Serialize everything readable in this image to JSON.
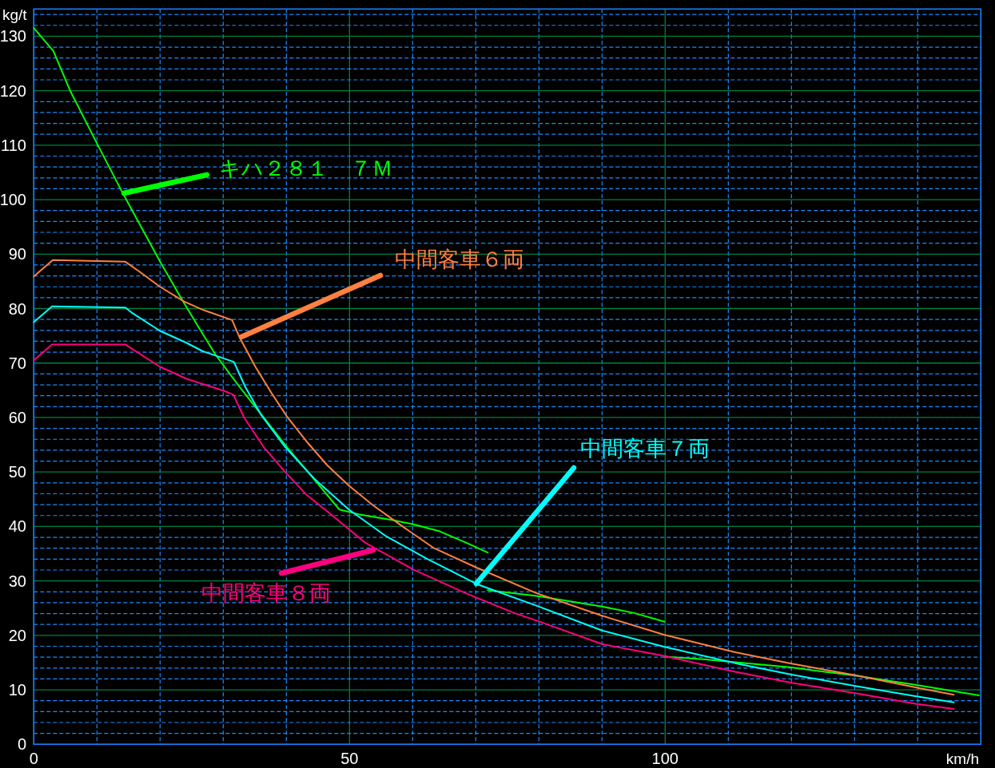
{
  "chart_data": {
    "type": "line",
    "xlabel": "km/h",
    "ylabel": "kg/t",
    "xlim": [
      0,
      150
    ],
    "ylim": [
      0,
      135
    ],
    "grid": true,
    "line_style": "solid",
    "xticks": [
      0,
      {
        "value": 10,
        "label": null
      },
      {
        "value": 20,
        "label": null
      },
      {
        "value": 30,
        "label": null
      },
      {
        "value": 40,
        "label": null
      },
      50,
      {
        "value": 60,
        "label": null
      },
      {
        "value": 70,
        "label": null
      },
      {
        "value": 80,
        "label": null
      },
      {
        "value": 90,
        "label": null
      },
      100,
      {
        "value": 110,
        "label": null
      },
      {
        "value": 120,
        "label": null
      },
      {
        "value": 130,
        "label": null
      },
      {
        "value": 140,
        "label": null
      }
    ],
    "yticks": [
      0,
      {
        "value": 2,
        "label": null
      },
      {
        "value": 4,
        "label": null
      },
      {
        "value": 6,
        "label": null
      },
      {
        "value": 8,
        "label": null
      },
      10,
      {
        "value": 12,
        "label": null
      },
      {
        "value": 14,
        "label": null
      },
      {
        "value": 16,
        "label": null
      },
      {
        "value": 18,
        "label": null
      },
      20,
      {
        "value": 22,
        "label": null
      },
      {
        "value": 24,
        "label": null
      },
      {
        "value": 26,
        "label": null
      },
      {
        "value": 28,
        "label": null
      },
      30,
      {
        "value": 32,
        "label": null
      },
      {
        "value": 34,
        "label": null
      },
      {
        "value": 36,
        "label": null
      },
      {
        "value": 38,
        "label": null
      },
      40,
      {
        "value": 42,
        "label": null
      },
      {
        "value": 44,
        "label": null
      },
      {
        "value": 46,
        "label": null
      },
      {
        "value": 48,
        "label": null
      },
      50,
      {
        "value": 52,
        "label": null
      },
      {
        "value": 54,
        "label": null
      },
      {
        "value": 56,
        "label": null
      },
      {
        "value": 58,
        "label": null
      },
      60,
      {
        "value": 62,
        "label": null
      },
      {
        "value": 64,
        "label": null
      },
      {
        "value": 66,
        "label": null
      },
      {
        "value": 68,
        "label": null
      },
      70,
      {
        "value": 72,
        "label": null
      },
      {
        "value": 74,
        "label": null
      },
      {
        "value": 76,
        "label": null
      },
      {
        "value": 78,
        "label": null
      },
      80,
      {
        "value": 82,
        "label": null
      },
      {
        "value": 84,
        "label": null
      },
      {
        "value": 86,
        "label": null
      },
      {
        "value": 88,
        "label": null
      },
      90,
      {
        "value": 92,
        "label": null
      },
      {
        "value": 94,
        "label": null
      },
      {
        "value": 96,
        "label": null
      },
      {
        "value": 98,
        "label": null
      },
      100,
      {
        "value": 102,
        "label": null
      },
      {
        "value": 104,
        "label": null
      },
      {
        "value": 106,
        "label": null
      },
      {
        "value": 108,
        "label": null
      },
      110,
      {
        "value": 112,
        "label": null
      },
      {
        "value": 114,
        "label": null
      },
      {
        "value": 116,
        "label": null
      },
      {
        "value": 118,
        "label": null
      },
      120,
      {
        "value": 122,
        "label": null
      },
      {
        "value": 124,
        "label": null
      },
      {
        "value": 126,
        "label": null
      },
      {
        "value": 128,
        "label": null
      },
      130,
      {
        "value": 132,
        "label": null
      },
      {
        "value": 134,
        "label": null
      }
    ],
    "series": [
      {
        "name": "キハ２８１　７Ｍ",
        "color": "#00ff00",
        "x": [
          0,
          3.1,
          5.8,
          10.1,
          13.9,
          20.0,
          23.3,
          26.3,
          28.8,
          32.4,
          36.4,
          40.2,
          44.0,
          48.4,
          51.6,
          56.7,
          60.1,
          64.3,
          68.5,
          71.9,
          null,
          71.9,
          79.9,
          90.0,
          95.1,
          99.9,
          null,
          99.9,
          106.0,
          120.0,
          130.1,
          139.8,
          149.7
        ],
        "values": [
          131.5,
          127.3,
          119.9,
          110.1,
          101.6,
          88.6,
          82.0,
          76.2,
          71.5,
          65.9,
          60.0,
          54.4,
          49.2,
          43.1,
          42.2,
          41.2,
          40.4,
          39.1,
          37.0,
          35.2,
          null,
          28.3,
          27.2,
          25.3,
          24.1,
          22.5,
          null,
          16.1,
          15.6,
          14.1,
          12.6,
          10.9,
          9.0
        ]
      },
      {
        "name": "中間客車６両",
        "color": "#ff8040",
        "x": [
          0,
          3.0,
          14.5,
          16.6,
          20.0,
          23.8,
          26.7,
          31.4,
          32.6,
          35.1,
          37.7,
          40.2,
          43.2,
          46.5,
          49.9,
          53.7,
          58.4,
          63.4,
          70.2,
          79.5,
          90.0,
          99.9,
          111.1,
          120.0,
          130.1,
          139.8,
          145.7
        ],
        "values": [
          85.9,
          88.9,
          88.6,
          86.9,
          84.0,
          81.3,
          79.8,
          77.9,
          74.7,
          69.3,
          64.4,
          60.0,
          55.6,
          51.2,
          47.5,
          43.9,
          40.0,
          36.0,
          32.4,
          27.8,
          23.6,
          20.1,
          16.9,
          14.8,
          12.7,
          10.4,
          9.1
        ]
      },
      {
        "name": "中間客車７両",
        "color": "#00ffff",
        "x": [
          0,
          2.9,
          14.5,
          15.7,
          20.0,
          24.2,
          26.7,
          31.7,
          33.5,
          36.0,
          39.8,
          44.4,
          49.9,
          55.8,
          62.2,
          70.2,
          79.5,
          90.0,
          99.9,
          111.1,
          120.0,
          130.1,
          139.8,
          145.7
        ],
        "values": [
          77.5,
          80.4,
          80.2,
          79.1,
          75.9,
          73.7,
          72.2,
          70.2,
          65.6,
          60.5,
          54.6,
          48.8,
          43.1,
          38.2,
          34.1,
          29.4,
          25.5,
          20.9,
          17.9,
          14.9,
          12.8,
          10.7,
          8.8,
          7.7
        ]
      },
      {
        "name": "中間客車８両",
        "color": "#ff0080",
        "x": [
          0,
          2.9,
          14.5,
          20.0,
          24.2,
          30.1,
          31.6,
          33.3,
          36.4,
          39.8,
          43.2,
          47.4,
          52.5,
          60.1,
          68.5,
          76.1,
          79.9,
          90.0,
          99.9,
          111.1,
          120.0,
          130.1,
          139.8,
          145.7
        ],
        "values": [
          70.5,
          73.4,
          73.4,
          69.3,
          67.1,
          64.9,
          64.2,
          60.0,
          54.6,
          50.0,
          45.8,
          41.9,
          37.0,
          32.1,
          27.7,
          24.1,
          22.6,
          18.4,
          16.2,
          13.3,
          11.3,
          9.4,
          7.4,
          6.5
        ]
      }
    ]
  }
}
